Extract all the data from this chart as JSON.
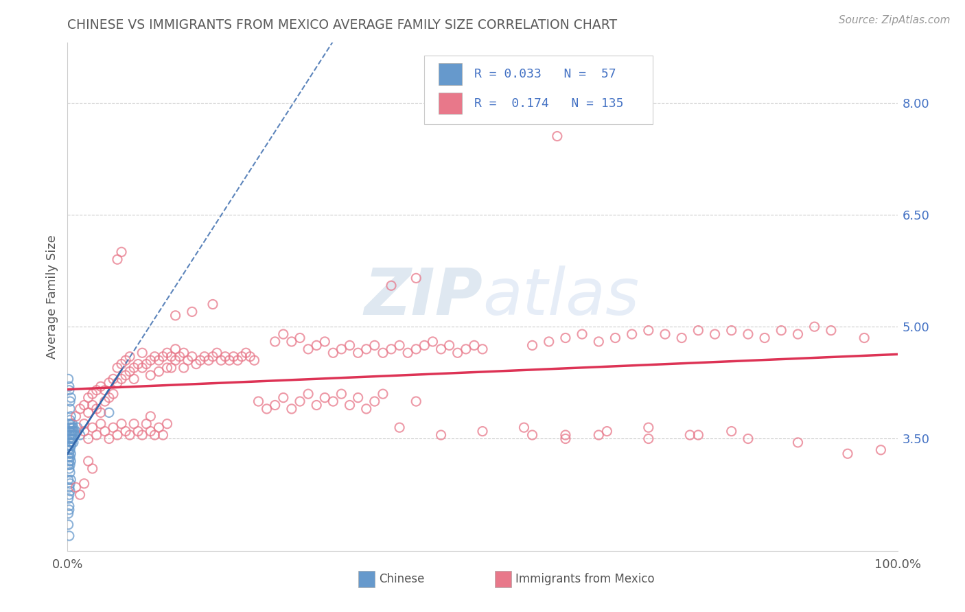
{
  "title": "CHINESE VS IMMIGRANTS FROM MEXICO AVERAGE FAMILY SIZE CORRELATION CHART",
  "source_text": "Source: ZipAtlas.com",
  "ylabel": "Average Family Size",
  "ylim": [
    2.0,
    8.8
  ],
  "xlim": [
    0.0,
    1.0
  ],
  "yticks_right": [
    3.5,
    5.0,
    6.5,
    8.0
  ],
  "xticklabels": [
    "0.0%",
    "100.0%"
  ],
  "chinese_color": "#6699cc",
  "mexico_color": "#e8788a",
  "chinese_line_color": "#3366aa",
  "mexico_line_color": "#dd3355",
  "axis_color": "#4472c4",
  "title_color": "#5b5b5b",
  "watermark_color": "#c8d8ee",
  "source_color": "#999999",
  "grid_color": "#cccccc",
  "chinese_points": [
    [
      0.001,
      3.25
    ],
    [
      0.001,
      3.35
    ],
    [
      0.001,
      3.15
    ],
    [
      0.001,
      2.95
    ],
    [
      0.002,
      3.5
    ],
    [
      0.002,
      3.3
    ],
    [
      0.002,
      3.6
    ],
    [
      0.002,
      3.4
    ],
    [
      0.002,
      3.2
    ],
    [
      0.002,
      3.7
    ],
    [
      0.002,
      3.1
    ],
    [
      0.002,
      2.85
    ],
    [
      0.003,
      3.45
    ],
    [
      0.003,
      3.55
    ],
    [
      0.003,
      3.35
    ],
    [
      0.003,
      3.25
    ],
    [
      0.003,
      3.65
    ],
    [
      0.003,
      3.15
    ],
    [
      0.003,
      3.75
    ],
    [
      0.003,
      3.05
    ],
    [
      0.004,
      3.5
    ],
    [
      0.004,
      3.4
    ],
    [
      0.004,
      3.6
    ],
    [
      0.004,
      3.3
    ],
    [
      0.004,
      3.7
    ],
    [
      0.004,
      3.2
    ],
    [
      0.004,
      3.8
    ],
    [
      0.005,
      3.55
    ],
    [
      0.005,
      3.45
    ],
    [
      0.005,
      3.65
    ],
    [
      0.006,
      3.6
    ],
    [
      0.006,
      3.5
    ],
    [
      0.006,
      3.7
    ],
    [
      0.007,
      3.55
    ],
    [
      0.007,
      3.65
    ],
    [
      0.007,
      3.45
    ],
    [
      0.008,
      3.6
    ],
    [
      0.009,
      3.55
    ],
    [
      0.01,
      3.6
    ],
    [
      0.012,
      3.65
    ],
    [
      0.015,
      3.55
    ],
    [
      0.001,
      4.3
    ],
    [
      0.002,
      4.15
    ],
    [
      0.003,
      4.0
    ],
    [
      0.001,
      2.5
    ],
    [
      0.001,
      2.35
    ],
    [
      0.002,
      2.2
    ],
    [
      0.002,
      2.55
    ],
    [
      0.001,
      2.7
    ],
    [
      0.002,
      2.75
    ],
    [
      0.002,
      2.6
    ],
    [
      0.003,
      2.9
    ],
    [
      0.004,
      2.95
    ],
    [
      0.003,
      2.8
    ],
    [
      0.004,
      4.05
    ],
    [
      0.002,
      4.2
    ],
    [
      0.003,
      3.9
    ],
    [
      0.05,
      3.85
    ]
  ],
  "mexico_points": [
    [
      0.01,
      3.8
    ],
    [
      0.015,
      3.9
    ],
    [
      0.02,
      3.95
    ],
    [
      0.02,
      3.7
    ],
    [
      0.025,
      4.05
    ],
    [
      0.025,
      3.85
    ],
    [
      0.03,
      4.1
    ],
    [
      0.03,
      3.95
    ],
    [
      0.035,
      4.15
    ],
    [
      0.035,
      3.9
    ],
    [
      0.04,
      4.2
    ],
    [
      0.04,
      3.85
    ],
    [
      0.045,
      4.15
    ],
    [
      0.045,
      4.0
    ],
    [
      0.05,
      4.25
    ],
    [
      0.05,
      4.05
    ],
    [
      0.055,
      4.3
    ],
    [
      0.055,
      4.1
    ],
    [
      0.06,
      4.25
    ],
    [
      0.06,
      4.45
    ],
    [
      0.065,
      4.3
    ],
    [
      0.065,
      4.5
    ],
    [
      0.07,
      4.35
    ],
    [
      0.07,
      4.55
    ],
    [
      0.075,
      4.4
    ],
    [
      0.075,
      4.6
    ],
    [
      0.08,
      4.45
    ],
    [
      0.08,
      4.3
    ],
    [
      0.085,
      4.5
    ],
    [
      0.09,
      4.45
    ],
    [
      0.09,
      4.65
    ],
    [
      0.095,
      4.5
    ],
    [
      0.1,
      4.55
    ],
    [
      0.1,
      4.35
    ],
    [
      0.105,
      4.6
    ],
    [
      0.11,
      4.55
    ],
    [
      0.11,
      4.4
    ],
    [
      0.115,
      4.6
    ],
    [
      0.12,
      4.65
    ],
    [
      0.12,
      4.45
    ],
    [
      0.125,
      4.6
    ],
    [
      0.125,
      4.45
    ],
    [
      0.13,
      4.55
    ],
    [
      0.13,
      4.7
    ],
    [
      0.135,
      4.6
    ],
    [
      0.14,
      4.65
    ],
    [
      0.14,
      4.45
    ],
    [
      0.145,
      4.55
    ],
    [
      0.15,
      4.6
    ],
    [
      0.155,
      4.5
    ],
    [
      0.16,
      4.55
    ],
    [
      0.165,
      4.6
    ],
    [
      0.17,
      4.55
    ],
    [
      0.175,
      4.6
    ],
    [
      0.18,
      4.65
    ],
    [
      0.185,
      4.55
    ],
    [
      0.19,
      4.6
    ],
    [
      0.195,
      4.55
    ],
    [
      0.2,
      4.6
    ],
    [
      0.205,
      4.55
    ],
    [
      0.21,
      4.6
    ],
    [
      0.215,
      4.65
    ],
    [
      0.22,
      4.6
    ],
    [
      0.225,
      4.55
    ],
    [
      0.02,
      3.6
    ],
    [
      0.025,
      3.5
    ],
    [
      0.03,
      3.65
    ],
    [
      0.035,
      3.55
    ],
    [
      0.04,
      3.7
    ],
    [
      0.045,
      3.6
    ],
    [
      0.05,
      3.5
    ],
    [
      0.055,
      3.65
    ],
    [
      0.06,
      3.55
    ],
    [
      0.065,
      3.7
    ],
    [
      0.07,
      3.6
    ],
    [
      0.075,
      3.55
    ],
    [
      0.08,
      3.7
    ],
    [
      0.085,
      3.6
    ],
    [
      0.09,
      3.55
    ],
    [
      0.095,
      3.7
    ],
    [
      0.1,
      3.6
    ],
    [
      0.105,
      3.55
    ],
    [
      0.1,
      3.8
    ],
    [
      0.06,
      5.9
    ],
    [
      0.065,
      6.0
    ],
    [
      0.25,
      4.8
    ],
    [
      0.26,
      4.9
    ],
    [
      0.27,
      4.8
    ],
    [
      0.28,
      4.85
    ],
    [
      0.29,
      4.7
    ],
    [
      0.3,
      4.75
    ],
    [
      0.31,
      4.8
    ],
    [
      0.32,
      4.65
    ],
    [
      0.33,
      4.7
    ],
    [
      0.34,
      4.75
    ],
    [
      0.35,
      4.65
    ],
    [
      0.36,
      4.7
    ],
    [
      0.37,
      4.75
    ],
    [
      0.38,
      4.65
    ],
    [
      0.39,
      4.7
    ],
    [
      0.4,
      4.75
    ],
    [
      0.41,
      4.65
    ],
    [
      0.42,
      4.7
    ],
    [
      0.43,
      4.75
    ],
    [
      0.44,
      4.8
    ],
    [
      0.45,
      4.7
    ],
    [
      0.46,
      4.75
    ],
    [
      0.47,
      4.65
    ],
    [
      0.48,
      4.7
    ],
    [
      0.49,
      4.75
    ],
    [
      0.5,
      4.7
    ],
    [
      0.4,
      3.65
    ],
    [
      0.45,
      3.55
    ],
    [
      0.5,
      3.6
    ],
    [
      0.55,
      3.65
    ],
    [
      0.6,
      3.55
    ],
    [
      0.65,
      3.6
    ],
    [
      0.7,
      3.65
    ],
    [
      0.75,
      3.55
    ],
    [
      0.8,
      3.6
    ],
    [
      0.23,
      4.0
    ],
    [
      0.24,
      3.9
    ],
    [
      0.25,
      3.95
    ],
    [
      0.26,
      4.05
    ],
    [
      0.27,
      3.9
    ],
    [
      0.28,
      4.0
    ],
    [
      0.29,
      4.1
    ],
    [
      0.3,
      3.95
    ],
    [
      0.31,
      4.05
    ],
    [
      0.32,
      4.0
    ],
    [
      0.33,
      4.1
    ],
    [
      0.34,
      3.95
    ],
    [
      0.35,
      4.05
    ],
    [
      0.36,
      3.9
    ],
    [
      0.37,
      4.0
    ],
    [
      0.38,
      4.1
    ],
    [
      0.42,
      4.0
    ],
    [
      0.56,
      4.75
    ],
    [
      0.58,
      4.8
    ],
    [
      0.6,
      4.85
    ],
    [
      0.62,
      4.9
    ],
    [
      0.64,
      4.8
    ],
    [
      0.66,
      4.85
    ],
    [
      0.68,
      4.9
    ],
    [
      0.7,
      4.95
    ],
    [
      0.72,
      4.9
    ],
    [
      0.74,
      4.85
    ],
    [
      0.76,
      4.95
    ],
    [
      0.78,
      4.9
    ],
    [
      0.8,
      4.95
    ],
    [
      0.82,
      4.9
    ],
    [
      0.84,
      4.85
    ],
    [
      0.86,
      4.95
    ],
    [
      0.88,
      4.9
    ],
    [
      0.9,
      5.0
    ],
    [
      0.92,
      4.95
    ],
    [
      0.56,
      3.55
    ],
    [
      0.6,
      3.5
    ],
    [
      0.64,
      3.55
    ],
    [
      0.7,
      3.5
    ],
    [
      0.76,
      3.55
    ],
    [
      0.82,
      3.5
    ],
    [
      0.88,
      3.45
    ],
    [
      0.94,
      3.3
    ],
    [
      0.98,
      3.35
    ],
    [
      0.96,
      4.85
    ],
    [
      0.15,
      5.2
    ],
    [
      0.175,
      5.3
    ],
    [
      0.13,
      5.15
    ],
    [
      0.39,
      5.55
    ],
    [
      0.42,
      5.65
    ],
    [
      0.59,
      7.55
    ],
    [
      0.01,
      2.85
    ],
    [
      0.015,
      2.75
    ],
    [
      0.02,
      2.9
    ],
    [
      0.025,
      3.2
    ],
    [
      0.03,
      3.1
    ],
    [
      0.11,
      3.65
    ],
    [
      0.115,
      3.55
    ],
    [
      0.12,
      3.7
    ]
  ]
}
